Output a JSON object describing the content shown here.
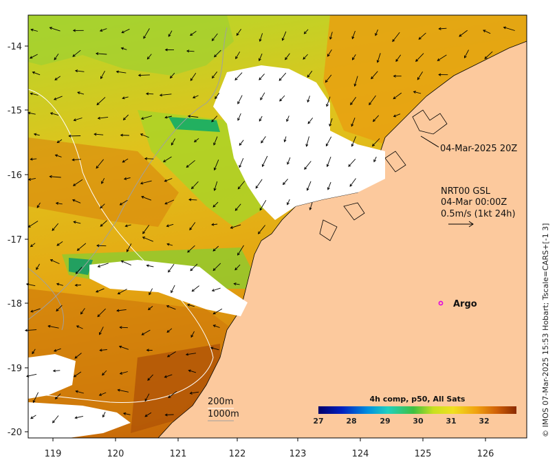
{
  "map": {
    "lon_ticks": [
      "119",
      "120",
      "121",
      "122",
      "123",
      "124",
      "125",
      "126"
    ],
    "lat_ticks": [
      "-14",
      "-15",
      "-16",
      "-17",
      "-18",
      "-19",
      "-20"
    ],
    "land_color": "#fcc99d",
    "swath_time": "04-Mar-2025 20Z",
    "current_source": "NRT00 GSL",
    "current_date": "04-Mar 00:00Z",
    "scale_arrow_label": "0.5m/s (1kt 24h)",
    "argo_label": "Argo",
    "contour_200": "200m",
    "contour_1000": "1000m",
    "colorbar_title": "4h comp, p50, All Sats",
    "colorbar_ticks": [
      "27",
      "28",
      "29",
      "30",
      "31",
      "32"
    ],
    "credit": "© IMOS 07-Mar-2025 15:53 Hobart; Tscale=CARS+[-1 3]"
  }
}
